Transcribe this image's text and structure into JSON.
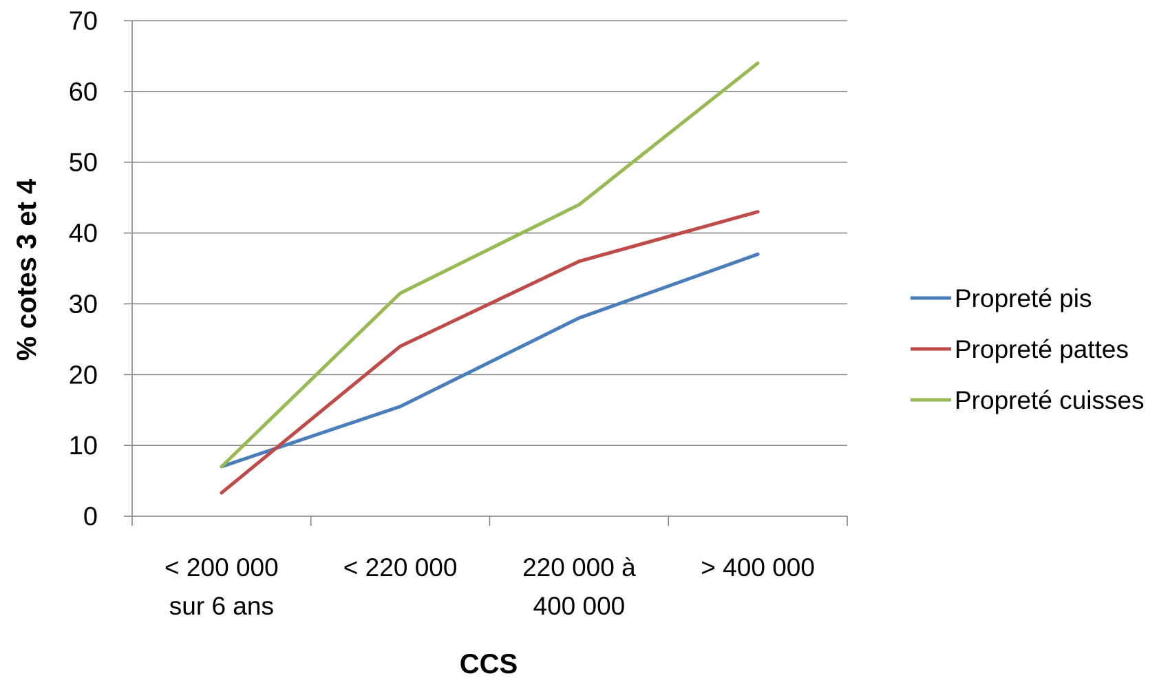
{
  "chart_data": {
    "type": "line",
    "title": "",
    "xlabel": "CCS",
    "ylabel": "% cotes 3 et 4",
    "ylim": [
      0,
      70
    ],
    "yticks": [
      0,
      10,
      20,
      30,
      40,
      50,
      60,
      70
    ],
    "grid": true,
    "legend_position": "right",
    "categories": [
      [
        "< 200 000",
        "sur 6 ans"
      ],
      [
        "< 220 000"
      ],
      [
        "220 000 à",
        "400 000"
      ],
      [
        "> 400 000"
      ]
    ],
    "series": [
      {
        "name": "Propreté pis",
        "color": "#4a7ebb",
        "values": [
          7,
          15.5,
          28,
          37
        ]
      },
      {
        "name": "Propreté pattes",
        "color": "#be4b48",
        "values": [
          3.3,
          24,
          36,
          43
        ]
      },
      {
        "name": "Propreté cuisses",
        "color": "#98b954",
        "values": [
          7,
          31.5,
          44,
          64
        ]
      }
    ]
  }
}
